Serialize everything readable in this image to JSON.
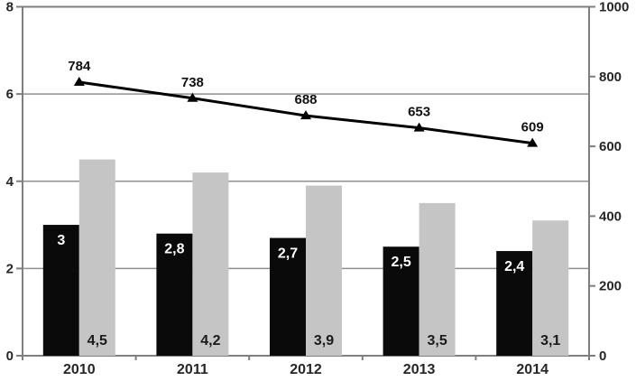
{
  "chart_data": {
    "type": "combo-bar-line",
    "title": "",
    "categories": [
      "2010",
      "2011",
      "2012",
      "2013",
      "2014"
    ],
    "series": [
      {
        "name": "black-bars",
        "type": "bar",
        "axis": "left",
        "values": [
          3,
          2.8,
          2.7,
          2.5,
          2.4
        ],
        "labels": [
          "3",
          "2,8",
          "2,7",
          "2,5",
          "2,4"
        ],
        "label_position": "inside-top",
        "color": "#0a0a0a",
        "label_color": "#ffffff"
      },
      {
        "name": "gray-bars",
        "type": "bar",
        "axis": "left",
        "values": [
          4.5,
          4.2,
          3.9,
          3.5,
          3.1
        ],
        "labels": [
          "4,5",
          "4,2",
          "3,9",
          "3,5",
          "3,1"
        ],
        "label_position": "inside-bottom",
        "color": "#c5c5c5",
        "label_color": "#1a1a1a"
      },
      {
        "name": "line-series",
        "type": "line",
        "axis": "right",
        "values": [
          784,
          738,
          688,
          653,
          609
        ],
        "labels": [
          "784",
          "738",
          "688",
          "653",
          "609"
        ],
        "label_position": "above",
        "marker": "triangle",
        "color": "#000000",
        "label_color": "#111111"
      }
    ],
    "left_axis": {
      "min": 0,
      "max": 8,
      "tick_values": [
        0,
        2,
        4,
        6,
        8
      ],
      "tick_labels": [
        "0",
        "2",
        "4",
        "6",
        "8"
      ]
    },
    "right_axis": {
      "min": 0,
      "max": 1000,
      "tick_values": [
        0,
        200,
        400,
        600,
        800,
        1000
      ],
      "tick_labels": [
        "0",
        "200",
        "400",
        "600",
        "800",
        "1000"
      ]
    },
    "grid": true,
    "gridline_values_left": [
      2,
      4,
      6
    ],
    "legend": "none",
    "colors": {
      "grid": "#8f8f8f",
      "axis": "#7f7f7f",
      "tick_text": "#262626",
      "background": "#ffffff"
    }
  }
}
